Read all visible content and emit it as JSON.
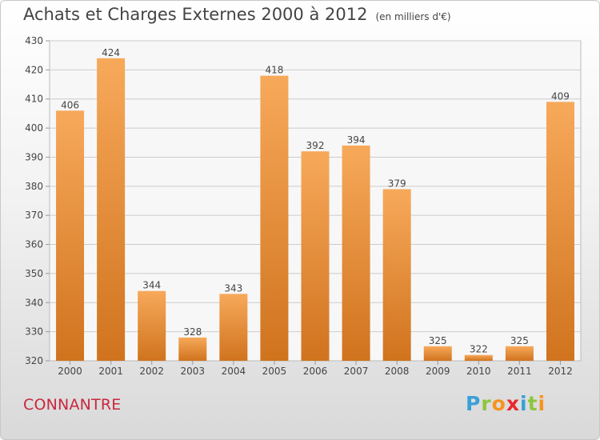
{
  "header": {
    "title": "Achats et Charges Externes 2000 à 2012",
    "unit": "(en milliers d'€)"
  },
  "footer": {
    "commune": "CONNANTRE",
    "logo_letters": [
      "P",
      "r",
      "o",
      "x",
      "i",
      "t",
      "i"
    ],
    "logo_colors": [
      "#3aa0d8",
      "#8cc63f",
      "#f7931e",
      "#e8292e",
      "#3aa0d8",
      "#8cc63f",
      "#f7931e"
    ]
  },
  "chart_data": {
    "type": "bar",
    "title": "Achats et Charges Externes 2000 à 2012",
    "xlabel": "",
    "ylabel": "",
    "categories": [
      "2000",
      "2001",
      "2002",
      "2003",
      "2004",
      "2005",
      "2006",
      "2007",
      "2008",
      "2009",
      "2010",
      "2011",
      "2012"
    ],
    "values": [
      406,
      424,
      344,
      328,
      343,
      418,
      392,
      394,
      379,
      325,
      322,
      325,
      409
    ],
    "ylim": [
      320,
      430
    ],
    "yticks": [
      320,
      330,
      340,
      350,
      360,
      370,
      380,
      390,
      400,
      410,
      420,
      430
    ],
    "grid": true,
    "bar_color_top": "#f7a95a",
    "bar_color_bottom": "#d0731e"
  }
}
